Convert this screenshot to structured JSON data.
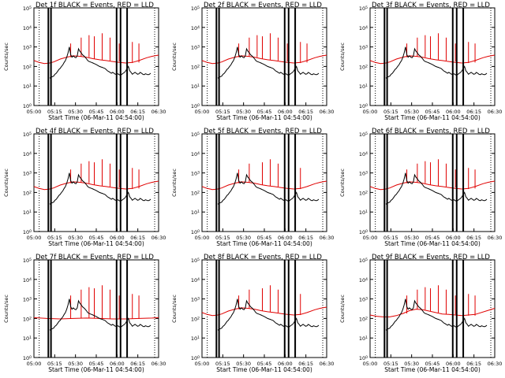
{
  "figure": {
    "background": "#ffffff",
    "events_color": "#000000",
    "lld_color": "#e00000"
  },
  "chart_data": [
    {
      "type": "line",
      "title": "Det 1f BLACK = Events, RED = LLD",
      "xlabel": "Start Time (06-Mar-11 04:54:00)",
      "ylabel": "Counts/sec",
      "yscale": "log",
      "ylim": [
        1,
        100000
      ],
      "xtick_labels": [
        "05:00",
        "05:15",
        "05:30",
        "05:45",
        "06:00",
        "06:15",
        "06:30"
      ],
      "ytick_labels": [
        "10^0",
        "10^1",
        "10^2",
        "10^3",
        "10^4",
        "10^5"
      ],
      "series": [
        {
          "variant": "A",
          "lld_profile": "standard"
        }
      ]
    },
    {
      "type": "line",
      "title": "Det 2f BLACK = Events, RED = LLD",
      "xlabel": "Start Time (06-Mar-11 04:54:00)",
      "ylabel": "Counts/sec",
      "yscale": "log",
      "ylim": [
        1,
        100000
      ],
      "xtick_labels": [
        "05:00",
        "05:15",
        "05:30",
        "05:45",
        "06:00",
        "06:15",
        "06:30"
      ],
      "ytick_labels": [
        "10^0",
        "10^1",
        "10^2",
        "10^3",
        "10^4",
        "10^5"
      ],
      "series": [
        {
          "variant": "A",
          "lld_profile": "standard"
        }
      ]
    },
    {
      "type": "line",
      "title": "Det 3f BLACK = Events, RED = LLD",
      "xlabel": "Start Time (06-Mar-11 04:54:00)",
      "ylabel": "Counts/sec",
      "yscale": "log",
      "ylim": [
        1,
        100000
      ],
      "xtick_labels": [
        "05:00",
        "05:15",
        "05:30",
        "05:45",
        "06:00",
        "06:15",
        "06:30"
      ],
      "ytick_labels": [
        "10^0",
        "10^1",
        "10^2",
        "10^3",
        "10^4",
        "10^5"
      ],
      "series": [
        {
          "variant": "A",
          "lld_profile": "standard"
        }
      ]
    },
    {
      "type": "line",
      "title": "Det 4f BLACK = Events, RED = LLD",
      "xlabel": "Start Time (06-Mar-11 04:54:00)",
      "ylabel": "Counts/sec",
      "yscale": "log",
      "ylim": [
        1,
        100000
      ],
      "xtick_labels": [
        "05:00",
        "05:15",
        "05:30",
        "05:45",
        "06:00",
        "06:15",
        "06:30"
      ],
      "ytick_labels": [
        "10^0",
        "10^1",
        "10^2",
        "10^3",
        "10^4",
        "10^5"
      ],
      "series": [
        {
          "variant": "A",
          "lld_profile": "standard"
        }
      ]
    },
    {
      "type": "line",
      "title": "Det 5f BLACK = Events, RED = LLD",
      "xlabel": "Start Time (06-Mar-11 04:54:00)",
      "ylabel": "Counts/sec",
      "yscale": "log",
      "ylim": [
        1,
        100000
      ],
      "xtick_labels": [
        "05:00",
        "05:15",
        "05:30",
        "05:45",
        "06:00",
        "06:15",
        "06:30"
      ],
      "ytick_labels": [
        "10^0",
        "10^1",
        "10^2",
        "10^3",
        "10^4",
        "10^5"
      ],
      "series": [
        {
          "variant": "B",
          "lld_profile": "standard"
        }
      ]
    },
    {
      "type": "line",
      "title": "Det 6f BLACK = Events, RED = LLD",
      "xlabel": "Start Time (06-Mar-11 04:54:00)",
      "ylabel": "Counts/sec",
      "yscale": "log",
      "ylim": [
        1,
        100000
      ],
      "xtick_labels": [
        "05:00",
        "05:15",
        "05:30",
        "05:45",
        "06:00",
        "06:15",
        "06:30"
      ],
      "ytick_labels": [
        "10^0",
        "10^1",
        "10^2",
        "10^3",
        "10^4",
        "10^5"
      ],
      "series": [
        {
          "variant": "A",
          "lld_profile": "standard"
        }
      ]
    },
    {
      "type": "line",
      "title": "Det 7f BLACK = Events, RED = LLD",
      "xlabel": "Start Time (06-Mar-11 04:54:00)",
      "ylabel": "Counts/sec",
      "yscale": "log",
      "ylim": [
        1,
        100000
      ],
      "xtick_labels": [
        "05:00",
        "05:15",
        "05:30",
        "05:45",
        "06:00",
        "06:15",
        "06:30"
      ],
      "ytick_labels": [
        "10^0",
        "10^1",
        "10^2",
        "10^3",
        "10^4",
        "10^5"
      ],
      "series": [
        {
          "variant": "A",
          "lld_profile": "flat"
        }
      ]
    },
    {
      "type": "line",
      "title": "Det 8f BLACK = Events, RED = LLD",
      "xlabel": "Start Time (06-Mar-11 04:54:00)",
      "ylabel": "Counts/sec",
      "yscale": "log",
      "ylim": [
        1,
        100000
      ],
      "xtick_labels": [
        "05:00",
        "05:15",
        "05:30",
        "05:45",
        "06:00",
        "06:15",
        "06:30"
      ],
      "ytick_labels": [
        "10^0",
        "10^1",
        "10^2",
        "10^3",
        "10^4",
        "10^5"
      ],
      "series": [
        {
          "variant": "B",
          "lld_profile": "standard"
        }
      ]
    },
    {
      "type": "line",
      "title": "Det 9f BLACK = Events, RED = LLD",
      "xlabel": "Start Time (06-Mar-11 04:54:00)",
      "ylabel": "Counts/sec",
      "yscale": "log",
      "ylim": [
        1,
        100000
      ],
      "xtick_labels": [
        "05:00",
        "05:15",
        "05:30",
        "05:45",
        "06:00",
        "06:15",
        "06:30"
      ],
      "ytick_labels": [
        "10^0",
        "10^1",
        "10^2",
        "10^3",
        "10^4",
        "10^5"
      ],
      "series": [
        {
          "variant": "A",
          "lld_profile": "noisy"
        }
      ]
    }
  ],
  "series_templates": {
    "lld": {
      "standard": {
        "x": [
          0,
          4,
          8,
          12,
          15,
          20,
          25,
          30,
          35,
          40,
          45,
          50,
          55,
          60,
          65,
          70,
          75,
          80,
          86,
          90,
          95
        ],
        "y": [
          200,
          160,
          140,
          150,
          170,
          240,
          300,
          350,
          330,
          300,
          250,
          220,
          200,
          180,
          160,
          150,
          160,
          200,
          280,
          330,
          380
        ]
      },
      "flat": {
        "x": [
          0,
          10,
          20,
          30,
          40,
          50,
          60,
          70,
          80,
          90,
          95
        ],
        "y": [
          110,
          100,
          95,
          100,
          105,
          100,
          95,
          95,
          100,
          105,
          110
        ]
      },
      "noisy": {
        "x": [
          0,
          5,
          10,
          15,
          20,
          25,
          30,
          35,
          40,
          45,
          50,
          55,
          60,
          65,
          70,
          80,
          90,
          95
        ],
        "y": [
          150,
          130,
          120,
          120,
          140,
          180,
          250,
          300,
          280,
          240,
          200,
          170,
          160,
          150,
          140,
          160,
          260,
          330
        ]
      }
    },
    "events": {
      "x": [
        12,
        13,
        14,
        15,
        16,
        17,
        18,
        19,
        20,
        21,
        22,
        23,
        24,
        25,
        26,
        27,
        28,
        29,
        30,
        31,
        32,
        33,
        34,
        35,
        36,
        37,
        38,
        39,
        40,
        41,
        42,
        43,
        44,
        45,
        46,
        47,
        48,
        49,
        50,
        51,
        52,
        53,
        54,
        55,
        56,
        57,
        58,
        59,
        60,
        61,
        62,
        63,
        64,
        65,
        66,
        67,
        68,
        69,
        70,
        71,
        72,
        73,
        74,
        75,
        76,
        77,
        78,
        79,
        80,
        81,
        82,
        83,
        84,
        85,
        86,
        87,
        88,
        89
      ],
      "y": [
        25,
        28,
        30,
        32,
        40,
        45,
        55,
        70,
        80,
        100,
        120,
        160,
        200,
        300,
        500,
        1000,
        400,
        300,
        350,
        300,
        280,
        350,
        800,
        600,
        500,
        400,
        350,
        300,
        250,
        200,
        180,
        170,
        160,
        150,
        140,
        130,
        120,
        110,
        100,
        95,
        90,
        85,
        80,
        70,
        60,
        55,
        50,
        45,
        50,
        45,
        40,
        40,
        42,
        38,
        35,
        40,
        45,
        50,
        60,
        80,
        100,
        60,
        50,
        40,
        45,
        50,
        45,
        40,
        42,
        50,
        45,
        40,
        38,
        42,
        40,
        38,
        40,
        45
      ]
    },
    "spikes": {
      "A": [
        {
          "x": 28,
          "y": 1500
        },
        {
          "x": 36,
          "y": 3000
        },
        {
          "x": 42,
          "y": 4000
        },
        {
          "x": 46,
          "y": 3500
        },
        {
          "x": 52,
          "y": 5000
        },
        {
          "x": 58,
          "y": 3000
        },
        {
          "x": 65,
          "y": 1500
        },
        {
          "x": 75,
          "y": 1800
        },
        {
          "x": 80,
          "y": 1500
        }
      ],
      "B": [
        {
          "x": 28,
          "y": 1500
        },
        {
          "x": 36,
          "y": 3000
        },
        {
          "x": 46,
          "y": 3500
        },
        {
          "x": 52,
          "y": 5000
        },
        {
          "x": 58,
          "y": 3000
        },
        {
          "x": 75,
          "y": 1800
        }
      ]
    },
    "dotted_lines_x": [
      4,
      92
    ],
    "thick_lines_x": [
      11,
      13,
      63,
      66,
      71
    ]
  }
}
